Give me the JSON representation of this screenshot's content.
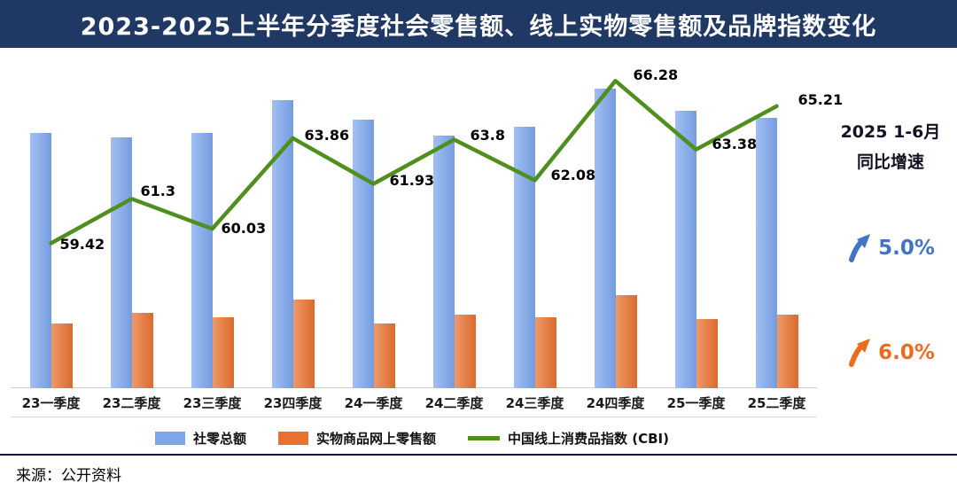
{
  "header": {
    "title": "2023-2025上半年分季度社会零售额、线上实物零售额及品牌指数变化"
  },
  "chart_data": {
    "type": "combo",
    "categories": [
      "23一季度",
      "23二季度",
      "23三季度",
      "23四季度",
      "24一季度",
      "24二季度",
      "24三季度",
      "24四季度",
      "25一季度",
      "25二季度"
    ],
    "series": [
      {
        "name": "社零总额",
        "type": "bar",
        "color": "#7DA6ED",
        "values": [
          11.5,
          11.3,
          11.5,
          13.0,
          12.1,
          11.4,
          11.8,
          13.5,
          12.5,
          12.2
        ]
      },
      {
        "name": "实物商品网上零售额",
        "type": "bar",
        "color": "#E8712F",
        "values": [
          2.9,
          3.4,
          3.2,
          4.0,
          2.9,
          3.3,
          3.2,
          4.2,
          3.1,
          3.3
        ]
      },
      {
        "name": "中国线上消费品指数 (CBI)",
        "type": "line",
        "color": "#4F8F1E",
        "values": [
          59.42,
          61.3,
          60.03,
          63.86,
          61.93,
          63.8,
          62.08,
          66.28,
          63.38,
          65.21
        ]
      }
    ],
    "bar_ylim": [
      0,
      14.3
    ],
    "line_ylim": [
      53.3,
      66.7
    ],
    "grid": false,
    "legend_position": "bottom",
    "title": "2023-2025上半年分季度社会零售额、线上实物零售额及品牌指数变化",
    "xlabel": "",
    "ylabel": ""
  },
  "side_panel": {
    "period": "2025 1-6月",
    "label": "同比增速",
    "stats": [
      {
        "value": "5.0%",
        "color": "#4472C4",
        "icon": "up-arrow"
      },
      {
        "value": "6.0%",
        "color": "#ED6B1E",
        "icon": "up-arrow"
      }
    ]
  },
  "footer": {
    "source": "来源：公开资料"
  }
}
